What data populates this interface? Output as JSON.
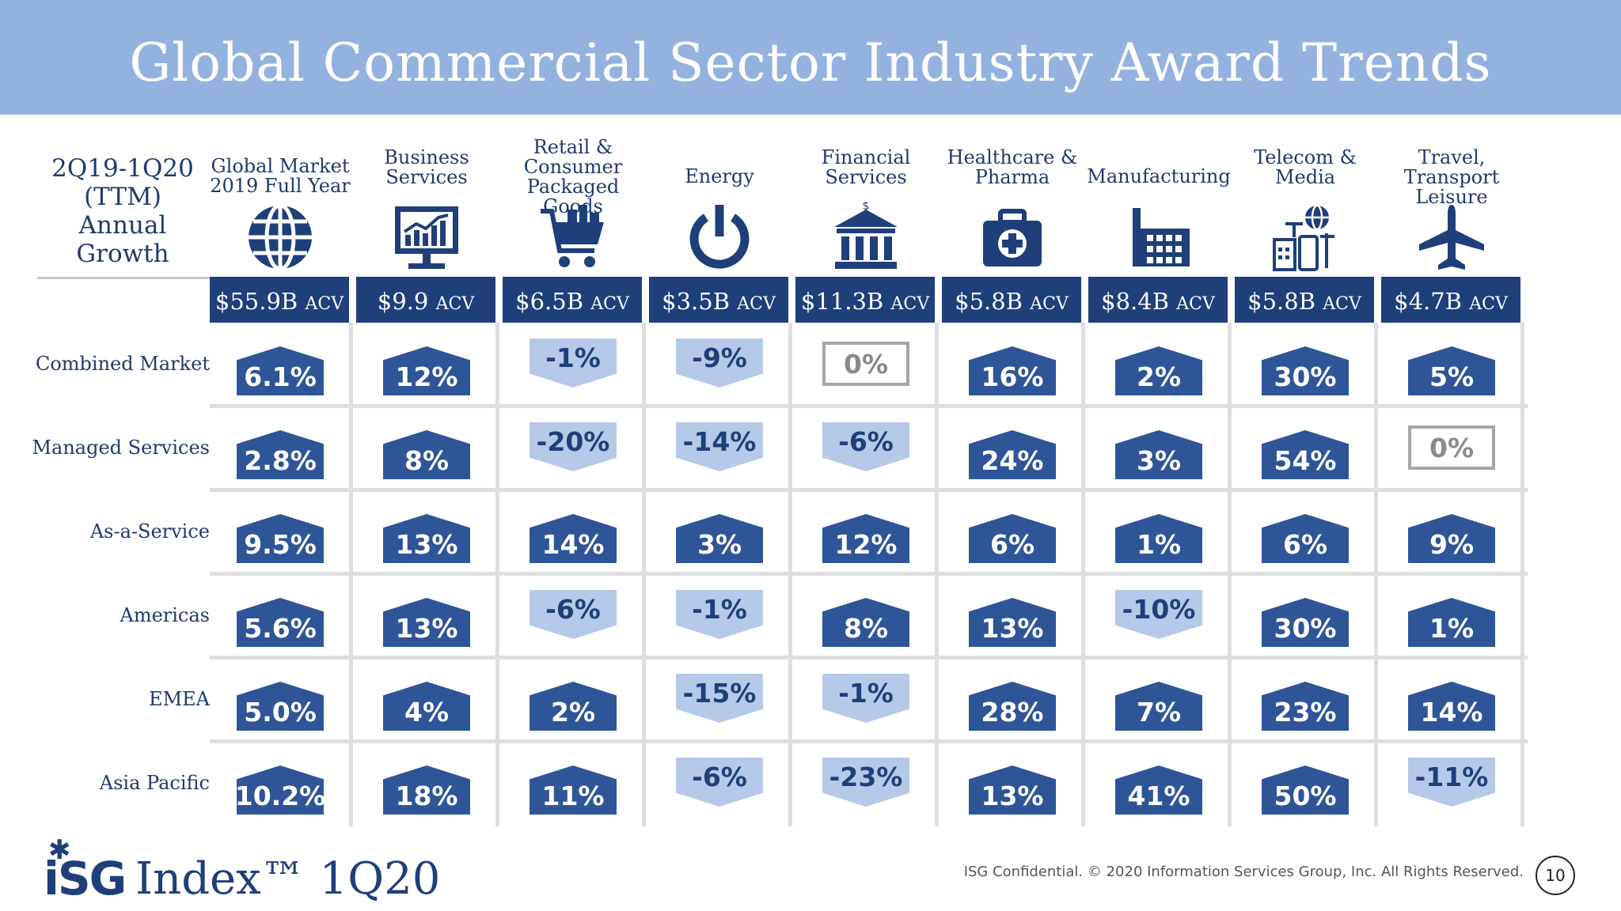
{
  "page_title": "Global Commercial Sector Industry Award Trends",
  "period_label": "2Q19-1Q20 (TTM) Annual Growth",
  "footer": {
    "logo_mark": "iSG",
    "logo_text": "Index™ 1Q20",
    "confidential": "ISG Confidential. © 2020 Information Services Group, Inc.  All Rights Reserved.",
    "page_number": "10"
  },
  "colors": {
    "banner": "#94b2df",
    "positive": "#2e5597",
    "negative": "#b7c9e8",
    "zero_border": "#a6a6a6",
    "header_bar": "#1f3f7a"
  },
  "chart_data": {
    "type": "table",
    "title": "Global Commercial Sector Industry Award Trends",
    "columns": [
      {
        "label": "Global Market 2019 Full Year",
        "acv": "$55.9B",
        "icon": "globe-icon"
      },
      {
        "label": "Business Services",
        "acv": "$9.9",
        "icon": "chart-monitor-icon"
      },
      {
        "label": "Retail & Consumer Packaged Goods",
        "acv": "$6.5B",
        "icon": "shopping-cart-icon"
      },
      {
        "label": "Energy",
        "acv": "$3.5B",
        "icon": "power-icon"
      },
      {
        "label": "Financial Services",
        "acv": "$11.3B",
        "icon": "bank-icon"
      },
      {
        "label": "Healthcare & Pharma",
        "acv": "$5.8B",
        "icon": "medical-kit-icon"
      },
      {
        "label": "Manufacturing",
        "acv": "$8.4B",
        "icon": "factory-icon"
      },
      {
        "label": "Telecom & Media",
        "acv": "$5.8B",
        "icon": "telecom-icon"
      },
      {
        "label": "Travel, Transport Leisure",
        "acv": "$4.7B",
        "icon": "airplane-icon"
      }
    ],
    "acv_unit": "ACV",
    "rows": [
      {
        "label": "Combined Market",
        "values": [
          "6.1%",
          "12%",
          "-1%",
          "-9%",
          "0%",
          "16%",
          "2%",
          "30%",
          "5%"
        ]
      },
      {
        "label": "Managed Services",
        "values": [
          "2.8%",
          "8%",
          "-20%",
          "-14%",
          "-6%",
          "24%",
          "3%",
          "54%",
          "0%"
        ]
      },
      {
        "label": "As-a-Service",
        "values": [
          "9.5%",
          "13%",
          "14%",
          "3%",
          "12%",
          "6%",
          "1%",
          "6%",
          "9%"
        ]
      },
      {
        "label": "Americas",
        "values": [
          "5.6%",
          "13%",
          "-6%",
          "-1%",
          "8%",
          "13%",
          "-10%",
          "30%",
          "1%"
        ]
      },
      {
        "label": "EMEA",
        "values": [
          "5.0%",
          "4%",
          "2%",
          "-15%",
          "-1%",
          "28%",
          "7%",
          "23%",
          "14%"
        ]
      },
      {
        "label": "Asia Pacific",
        "values": [
          "10.2%",
          "18%",
          "11%",
          "-6%",
          "-23%",
          "13%",
          "41%",
          "50%",
          "-11%"
        ]
      }
    ]
  }
}
